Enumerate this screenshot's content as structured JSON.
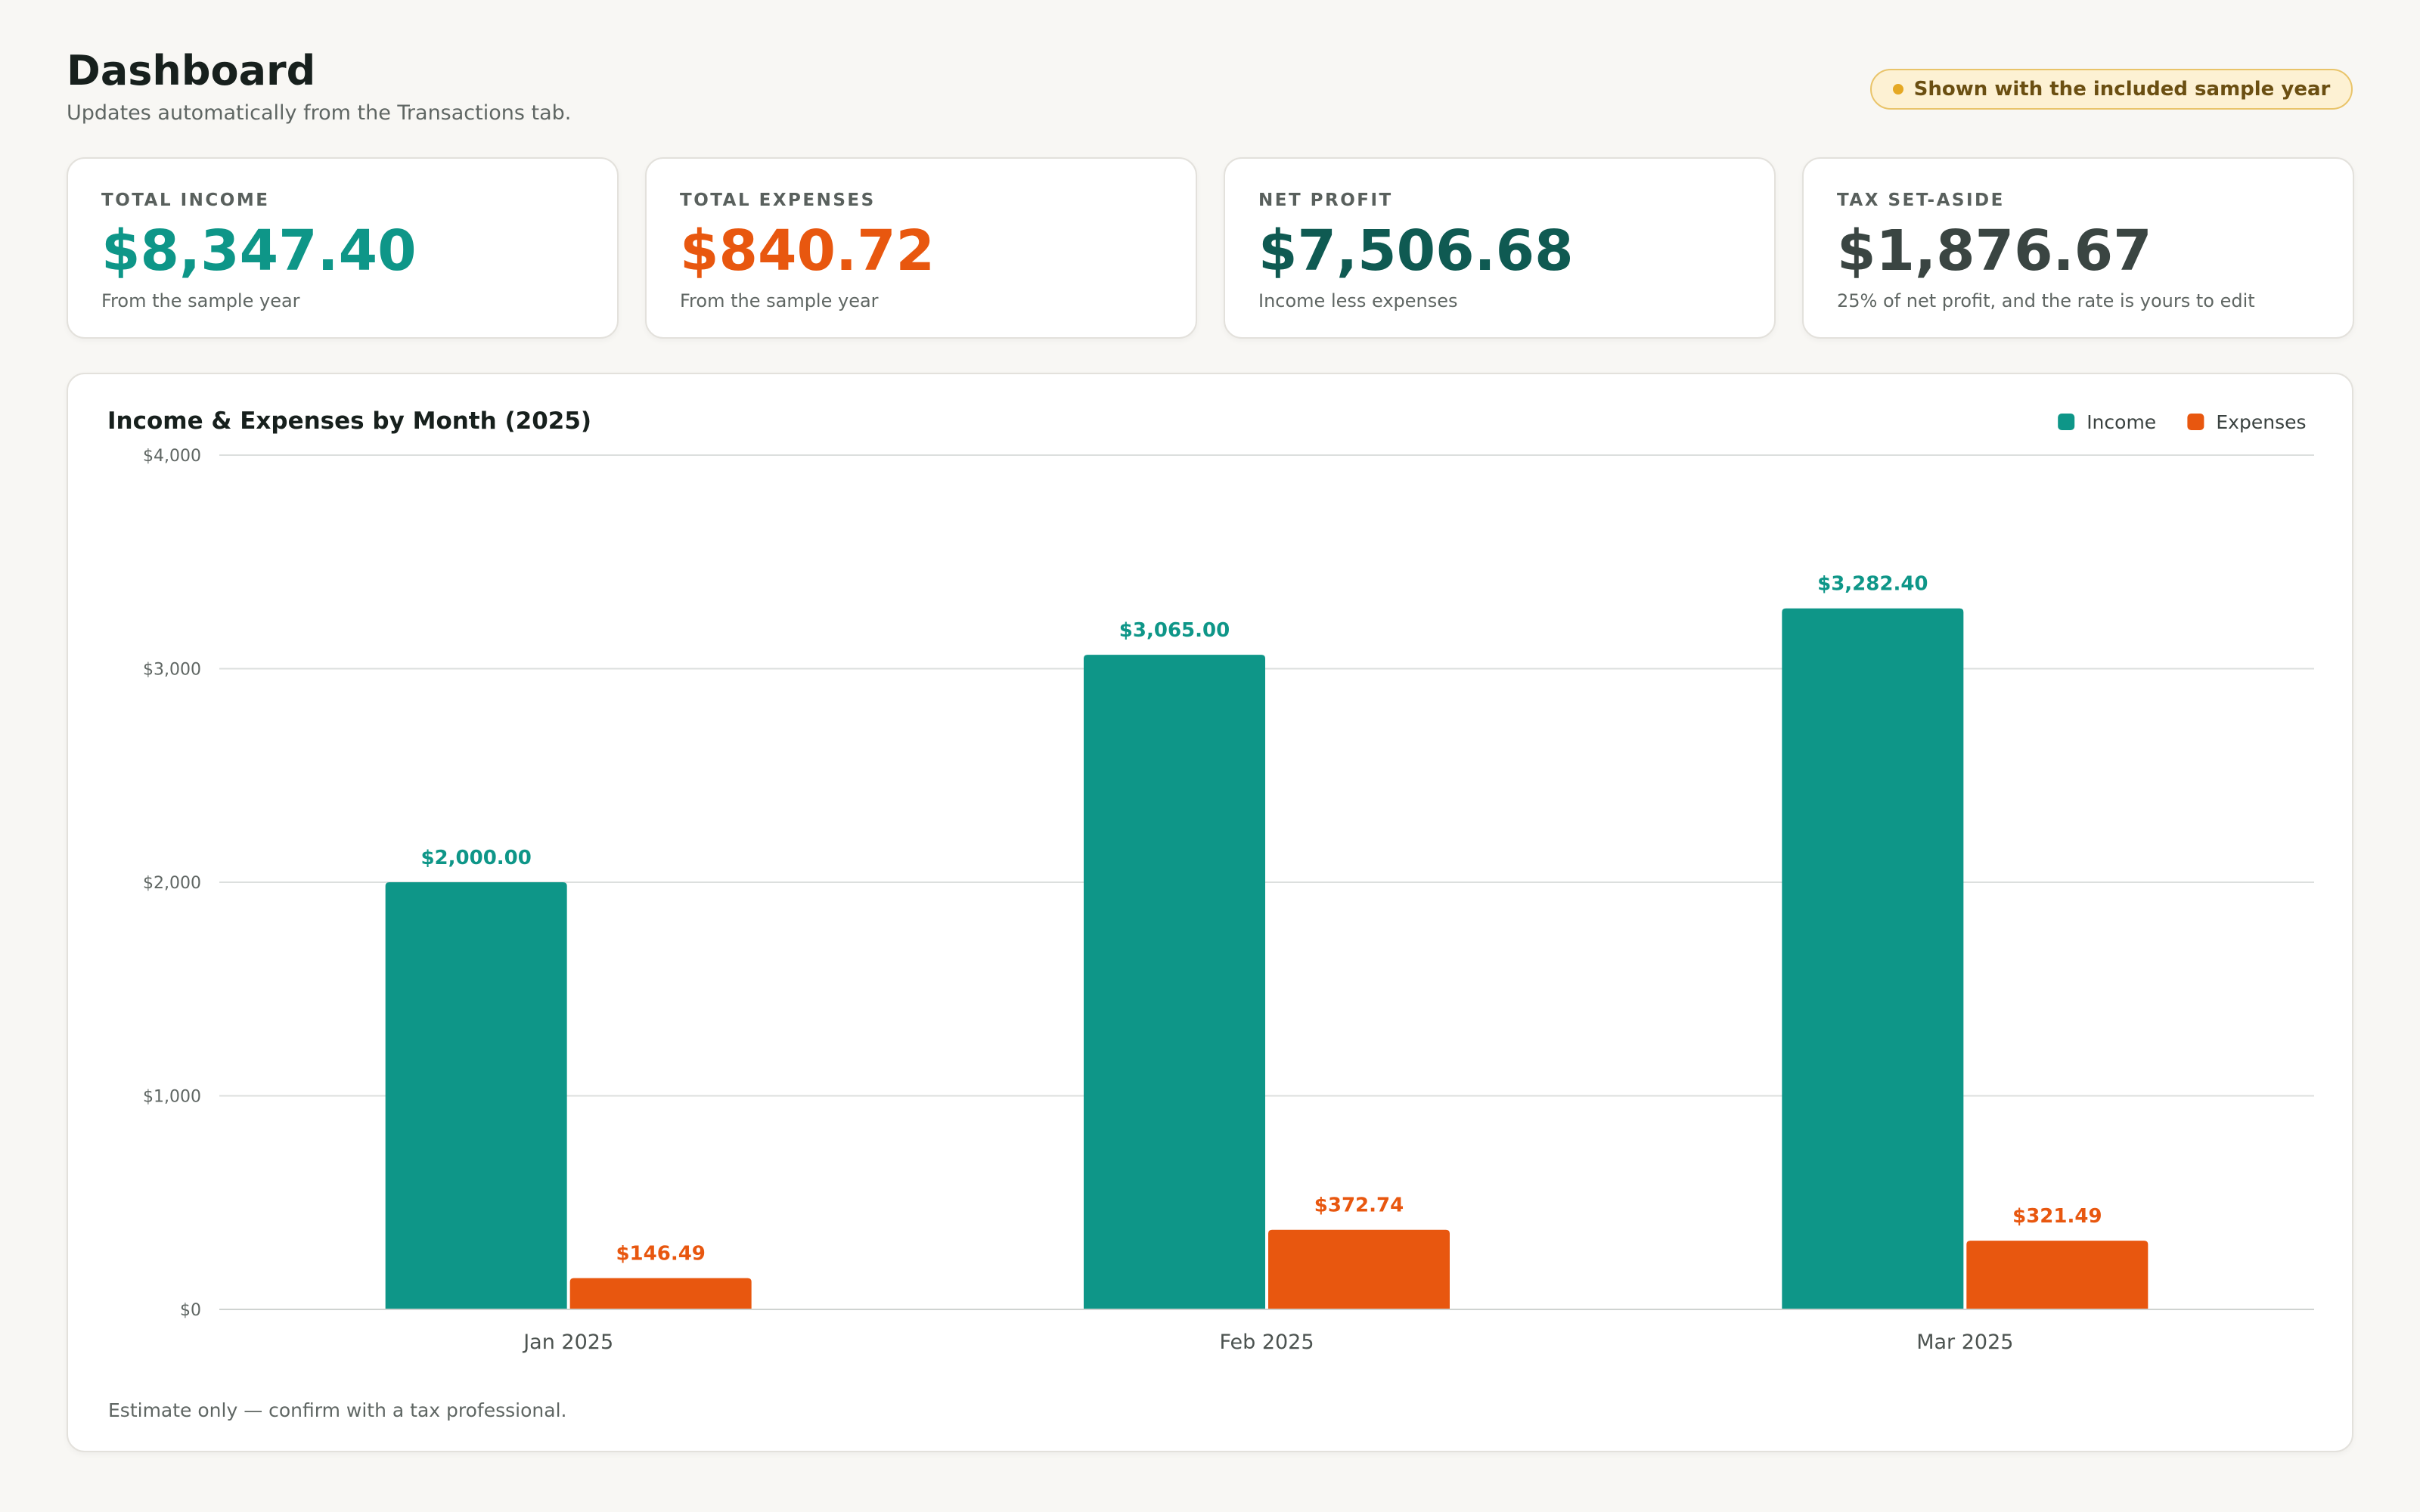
{
  "header": {
    "title": "Dashboard",
    "subtitle": "Updates automatically from the Transactions tab.",
    "badge": "Shown with the included sample year"
  },
  "cards": [
    {
      "label": "TOTAL INCOME",
      "value": "$8,347.40",
      "note": "From the sample year",
      "color": "#0e9688"
    },
    {
      "label": "TOTAL EXPENSES",
      "value": "$840.72",
      "note": "From the sample year",
      "color": "#e8570f"
    },
    {
      "label": "NET PROFIT",
      "value": "$7,506.68",
      "note": "Income less expenses",
      "color": "#0f5a52"
    },
    {
      "label": "TAX SET-ASIDE",
      "value": "$1,876.67",
      "note": "25% of net profit, and the rate is yours to edit",
      "color": "#3a4542"
    }
  ],
  "chart_data": {
    "type": "bar",
    "title": "Income & Expenses by Month (2025)",
    "categories": [
      "Jan 2025",
      "Feb 2025",
      "Mar 2025"
    ],
    "series": [
      {
        "name": "Income",
        "color": "#0e9688",
        "values": [
          2000.0,
          3065.0,
          3282.4
        ],
        "labels": [
          "$2,000.00",
          "$3,065.00",
          "$3,282.40"
        ]
      },
      {
        "name": "Expenses",
        "color": "#e8570f",
        "values": [
          146.49,
          372.74,
          321.49
        ],
        "labels": [
          "$146.49",
          "$372.74",
          "$321.49"
        ]
      }
    ],
    "ylim": [
      0,
      4000
    ],
    "yticks": [
      0,
      1000,
      2000,
      3000,
      4000
    ],
    "ytick_labels": [
      "$0",
      "$1,000",
      "$2,000",
      "$3,000",
      "$4,000"
    ],
    "grid": true,
    "legend_position": "top-right",
    "footnote": "Estimate only — confirm with a tax professional."
  }
}
